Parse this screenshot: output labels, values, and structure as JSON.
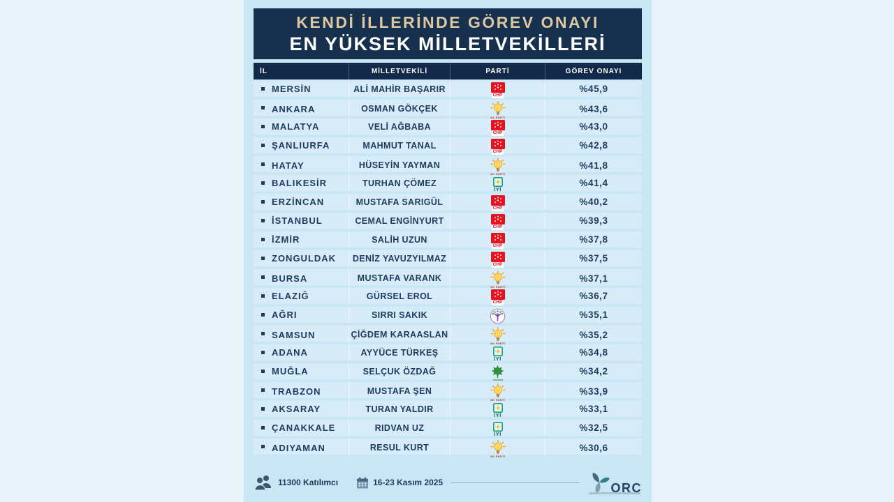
{
  "title": {
    "line1": "KENDİ İLLERİNDE GÖREV ONAYI",
    "line2": "EN YÜKSEK MİLLETVEKİLLERİ"
  },
  "chart_data": {
    "type": "table",
    "title": "KENDİ İLLERİNDE GÖREV ONAYI EN YÜKSEK MİLLETVEKİLLERİ",
    "columns": [
      "İL",
      "MİLLETVEKİLİ",
      "PARTİ",
      "GÖREV ONAYI"
    ],
    "rows": [
      [
        "MERSİN",
        "ALİ MAHİR BAŞARIR",
        "CHP",
        "%45,9"
      ],
      [
        "ANKARA",
        "OSMAN GÖKÇEK",
        "AKP",
        "%43,6"
      ],
      [
        "MALATYA",
        "VELİ AĞBABA",
        "CHP",
        "%43,0"
      ],
      [
        "ŞANLIURFA",
        "MAHMUT TANAL",
        "CHP",
        "%42,8"
      ],
      [
        "HATAY",
        "HÜSEYİN YAYMAN",
        "AKP",
        "%41,8"
      ],
      [
        "BALIKESİR",
        "TURHAN ÇÖMEZ",
        "IYI",
        "%41,4"
      ],
      [
        "ERZİNCAN",
        "MUSTAFA SARIGÜL",
        "CHP",
        "%40,2"
      ],
      [
        "İSTANBUL",
        "CEMAL ENGİNYURT",
        "CHP",
        "%39,3"
      ],
      [
        "İZMİR",
        "SALİH UZUN",
        "CHP",
        "%37,8"
      ],
      [
        "ZONGULDAK",
        "DENİZ YAVUZYILMAZ",
        "CHP",
        "%37,5"
      ],
      [
        "BURSA",
        "MUSTAFA VARANK",
        "AKP",
        "%37,1"
      ],
      [
        "ELAZIĞ",
        "GÜRSEL EROL",
        "CHP",
        "%36,7"
      ],
      [
        "AĞRI",
        "SIRRI SAKIK",
        "DEM",
        "%35,1"
      ],
      [
        "SAMSUN",
        "ÇİĞDEM KARAASLAN",
        "AKP",
        "%35,2"
      ],
      [
        "ADANA",
        "AYYÜCE TÜRKEŞ",
        "IYI",
        "%34,8"
      ],
      [
        "MUĞLA",
        "SELÇUK ÖZDAĞ",
        "GELECEK",
        "%34,2"
      ],
      [
        "TRABZON",
        "MUSTAFA ŞEN",
        "AKP",
        "%33,9"
      ],
      [
        "AKSARAY",
        "TURAN YALDIR",
        "IYI",
        "%33,1"
      ],
      [
        "ÇANAKKALE",
        "RIDVAN UZ",
        "IYI",
        "%32,5"
      ],
      [
        "ADIYAMAN",
        "RESUL KURT",
        "AKP",
        "%30,6"
      ]
    ]
  },
  "parties": {
    "CHP": {
      "name": "CHP",
      "label": "CHP",
      "color": "#e5131f"
    },
    "AKP": {
      "name": "AK PARTİ",
      "label": "AK PARTİ",
      "color": "#f5a623"
    },
    "IYI": {
      "name": "İYİ",
      "label": "İYİ",
      "color": "#16a085"
    },
    "DEM": {
      "name": "DEM",
      "label": "",
      "color": "#8e44ad"
    },
    "GELECEK": {
      "name": "GELECEK",
      "label": "",
      "color": "#2f8f3b"
    }
  },
  "footer": {
    "participants": "11300 Katılımcı",
    "dates": "16-23 Kasım 2025",
    "brand": "ORC"
  },
  "colors": {
    "page_bg": "#e8f3fa",
    "card_bg": "#c9e6f5",
    "title_box_bg": "#16304e",
    "title_line1": "#dbc8a2",
    "header_bg": "#13294a",
    "row_bg": "#d7ecf8",
    "text_navy": "#1d3b5f"
  }
}
